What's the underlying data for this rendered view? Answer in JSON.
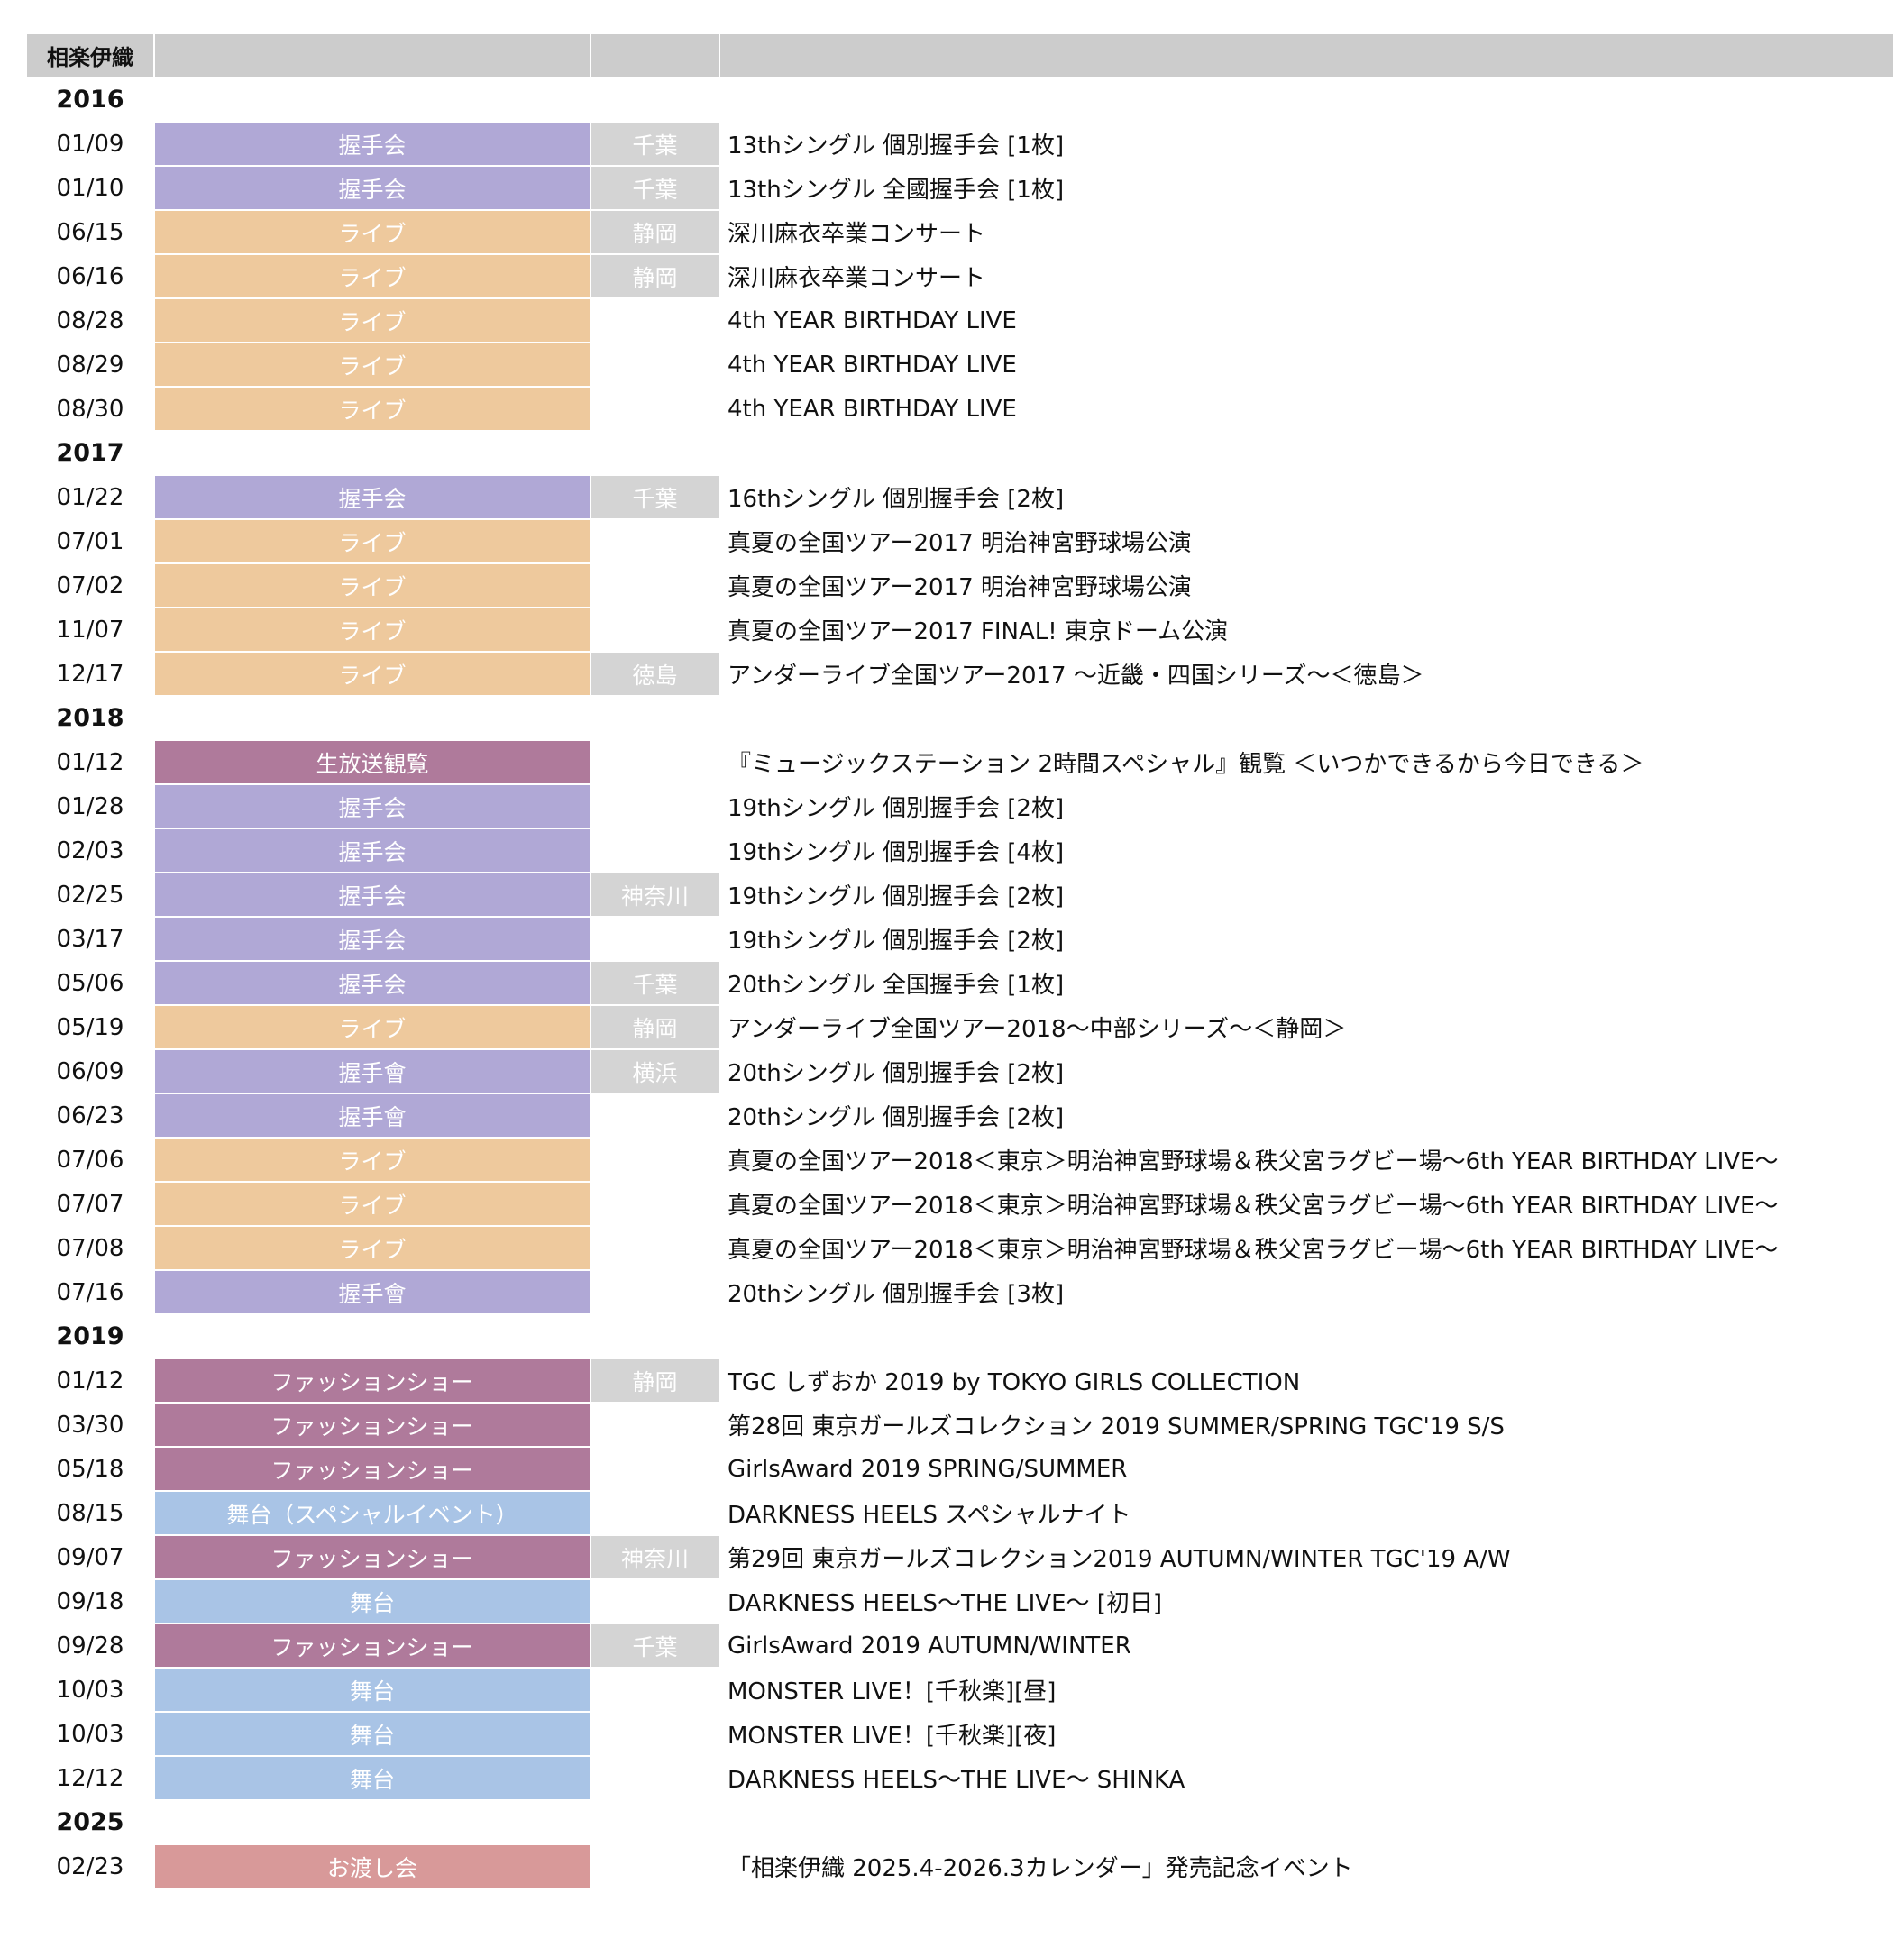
{
  "member_name": "相楽伊織",
  "colors": {
    "handshake": "#b0a8d6",
    "live": "#eec99d",
    "broadcast": "#af7a9b",
    "fashion": "#af7a9b",
    "stage": "#a9c4e6",
    "watashi": "#d89999",
    "location_bg": "#d4d4d4",
    "header_bg": "#cccccc"
  },
  "years": [
    {
      "year": "2016",
      "events": [
        {
          "date": "01/09",
          "type": "握手会",
          "cat": "handshake",
          "location": "千葉",
          "event": "13thシングル 個別握手会 [1枚]"
        },
        {
          "date": "01/10",
          "type": "握手会",
          "cat": "handshake",
          "location": "千葉",
          "event": "13thシングル 全國握手会 [1枚]"
        },
        {
          "date": "06/15",
          "type": "ライブ",
          "cat": "live",
          "location": "静岡",
          "event": "深川麻衣卒業コンサート"
        },
        {
          "date": "06/16",
          "type": "ライブ",
          "cat": "live",
          "location": "静岡",
          "event": "深川麻衣卒業コンサート"
        },
        {
          "date": "08/28",
          "type": "ライブ",
          "cat": "live",
          "location": "",
          "event": "4th YEAR BIRTHDAY LIVE"
        },
        {
          "date": "08/29",
          "type": "ライブ",
          "cat": "live",
          "location": "",
          "event": "4th YEAR BIRTHDAY LIVE"
        },
        {
          "date": "08/30",
          "type": "ライブ",
          "cat": "live",
          "location": "",
          "event": "4th YEAR BIRTHDAY LIVE"
        }
      ]
    },
    {
      "year": "2017",
      "events": [
        {
          "date": "01/22",
          "type": "握手会",
          "cat": "handshake",
          "location": "千葉",
          "event": "16thシングル 個別握手会 [2枚]"
        },
        {
          "date": "07/01",
          "type": "ライブ",
          "cat": "live",
          "location": "",
          "event": "真夏の全国ツアー2017 明治神宮野球場公演"
        },
        {
          "date": "07/02",
          "type": "ライブ",
          "cat": "live",
          "location": "",
          "event": "真夏の全国ツアー2017 明治神宮野球場公演"
        },
        {
          "date": "11/07",
          "type": "ライブ",
          "cat": "live",
          "location": "",
          "event": "真夏の全国ツアー2017 FINAL! 東京ドーム公演"
        },
        {
          "date": "12/17",
          "type": "ライブ",
          "cat": "live",
          "location": "徳島",
          "event": "アンダーライブ全国ツアー2017 〜近畿・四国シリーズ〜＜徳島＞"
        }
      ]
    },
    {
      "year": "2018",
      "events": [
        {
          "date": "01/12",
          "type": "生放送観覧",
          "cat": "broadcast",
          "location": "",
          "event": "『ミュージックステーション 2時間スペシャル』観覧 ＜いつかできるから今日できる＞"
        },
        {
          "date": "01/28",
          "type": "握手会",
          "cat": "handshake",
          "location": "",
          "event": "19thシングル 個別握手会 [2枚]"
        },
        {
          "date": "02/03",
          "type": "握手会",
          "cat": "handshake",
          "location": "",
          "event": "19thシングル 個別握手会 [4枚]"
        },
        {
          "date": "02/25",
          "type": "握手会",
          "cat": "handshake",
          "location": "神奈川",
          "event": "19thシングル 個別握手会 [2枚]"
        },
        {
          "date": "03/17",
          "type": "握手会",
          "cat": "handshake",
          "location": "",
          "event": "19thシングル 個別握手会 [2枚]"
        },
        {
          "date": "05/06",
          "type": "握手会",
          "cat": "handshake",
          "location": "千葉",
          "event": "20thシングル 全国握手会 [1枚]"
        },
        {
          "date": "05/19",
          "type": "ライブ",
          "cat": "live",
          "location": "静岡",
          "event": "アンダーライブ全国ツアー2018〜中部シリーズ〜＜静岡＞"
        },
        {
          "date": "06/09",
          "type": "握手會",
          "cat": "handshake",
          "location": "横浜",
          "event": "20thシングル 個別握手会 [2枚]"
        },
        {
          "date": "06/23",
          "type": "握手會",
          "cat": "handshake",
          "location": "",
          "event": "20thシングル 個別握手会 [2枚]"
        },
        {
          "date": "07/06",
          "type": "ライブ",
          "cat": "live",
          "location": "",
          "event": "真夏の全国ツアー2018＜東京＞明治神宮野球場＆秩父宮ラグビー場〜6th YEAR BIRTHDAY LIVE〜"
        },
        {
          "date": "07/07",
          "type": "ライブ",
          "cat": "live",
          "location": "",
          "event": "真夏の全国ツアー2018＜東京＞明治神宮野球場＆秩父宮ラグビー場〜6th YEAR BIRTHDAY LIVE〜"
        },
        {
          "date": "07/08",
          "type": "ライブ",
          "cat": "live",
          "location": "",
          "event": "真夏の全国ツアー2018＜東京＞明治神宮野球場＆秩父宮ラグビー場〜6th YEAR BIRTHDAY LIVE〜"
        },
        {
          "date": "07/16",
          "type": "握手會",
          "cat": "handshake",
          "location": "",
          "event": "20thシングル 個別握手会 [3枚]"
        }
      ]
    },
    {
      "year": "2019",
      "events": [
        {
          "date": "01/12",
          "type": "ファッションショー",
          "cat": "fashion",
          "location": "静岡",
          "event": "TGC しずおか 2019 by TOKYO GIRLS COLLECTION"
        },
        {
          "date": "03/30",
          "type": "ファッションショー",
          "cat": "fashion",
          "location": "",
          "event": "第28回 東京ガールズコレクション 2019 SUMMER/SPRING TGC'19 S/S"
        },
        {
          "date": "05/18",
          "type": "ファッションショー",
          "cat": "fashion",
          "location": "",
          "event": "GirlsAward 2019 SPRING/SUMMER"
        },
        {
          "date": "08/15",
          "type": "舞台（スペシャルイベント）",
          "cat": "stage",
          "location": "",
          "event": "DARKNESS HEELS スペシャルナイト"
        },
        {
          "date": "09/07",
          "type": "ファッションショー",
          "cat": "fashion",
          "location": "神奈川",
          "event": "第29回 東京ガールズコレクション2019 AUTUMN/WINTER TGC'19 A/W"
        },
        {
          "date": "09/18",
          "type": "舞台",
          "cat": "stage",
          "location": "",
          "event": "DARKNESS HEELS〜THE LIVE〜 [初日]"
        },
        {
          "date": "09/28",
          "type": "ファッションショー",
          "cat": "fashion",
          "location": "千葉",
          "event": "GirlsAward 2019 AUTUMN/WINTER"
        },
        {
          "date": "10/03",
          "type": "舞台",
          "cat": "stage",
          "location": "",
          "event": "MONSTER LIVE！[千秋楽][昼]"
        },
        {
          "date": "10/03",
          "type": "舞台",
          "cat": "stage",
          "location": "",
          "event": "MONSTER LIVE！[千秋楽][夜]"
        },
        {
          "date": "12/12",
          "type": "舞台",
          "cat": "stage",
          "location": "",
          "event": "DARKNESS HEELS〜THE LIVE〜 SHINKA"
        }
      ]
    },
    {
      "year": "2025",
      "events": [
        {
          "date": "02/23",
          "type": "お渡し会",
          "cat": "watashi",
          "location": "",
          "event": "「相楽伊織 2025.4-2026.3カレンダー」発売記念イベント"
        }
      ]
    }
  ]
}
